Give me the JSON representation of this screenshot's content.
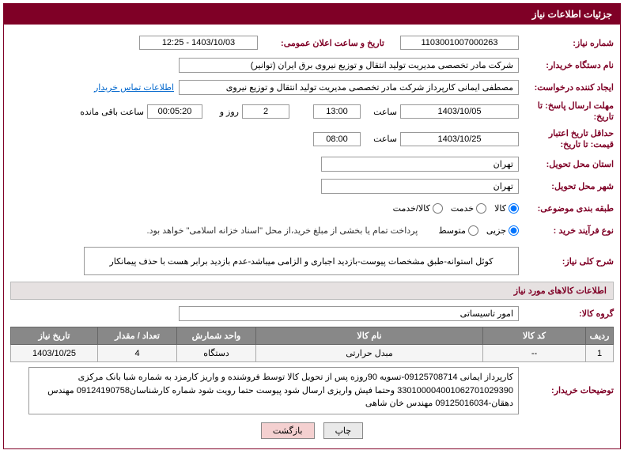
{
  "title_bar": "جزئیات اطلاعات نیاز",
  "labels": {
    "need_number": "شماره نیاز:",
    "announce_date": "تاریخ و ساعت اعلان عمومی:",
    "buyer_org": "نام دستگاه خریدار:",
    "requester": "ایجاد کننده درخواست:",
    "buyer_contact": "اطلاعات تماس خریدار",
    "response_deadline_date": "مهلت ارسال پاسخ: تا تاریخ:",
    "hour": "ساعت",
    "day_and": "روز و",
    "remaining": "ساعت باقی مانده",
    "price_validity_date": "حداقل تاریخ اعتبار قیمت: تا تاریخ:",
    "delivery_province": "استان محل تحویل:",
    "delivery_city": "شهر محل تحویل:",
    "category": "طبقه بندی موضوعی:",
    "goods": "کالا",
    "service": "خدمت",
    "goods_service": "کالا/خدمت",
    "purchase_type": "نوع فرآیند خرید :",
    "partial": "جزیی",
    "medium": "متوسط",
    "payment_note": "پرداخت تمام یا بخشی از مبلغ خرید،از محل \"اسناد خزانه اسلامی\" خواهد بود.",
    "need_desc": "شرح کلی نیاز:",
    "goods_info_section": "اطلاعات کالاهای مورد نیاز",
    "goods_group": "گروه کالا:",
    "buyer_notes": "توضیحات خریدار:"
  },
  "values": {
    "need_number": "1103001007000263",
    "announce_date": "1403/10/03 - 12:25",
    "buyer_org": "شرکت مادر تخصصی مدیریت تولید  انتقال و توزیع نیروی برق ایران (توانیر)",
    "requester": "مصطفی ایمانی کارپرداز شرکت مادر تخصصی مدیریت تولید  انتقال و توزیع نیروی",
    "response_date": "1403/10/05",
    "response_hour": "13:00",
    "days_left": "2",
    "time_left": "00:05:20",
    "validity_date": "1403/10/25",
    "validity_hour": "08:00",
    "province": "تهران",
    "city": "تهران",
    "need_desc_text": "کوئل استوانه-طبق مشخصات پیوست-بازدید اجباری و الزامی میباشد-عدم بازدید برابر هست با حذف پیمانکار",
    "goods_group": "امور تاسیساتی",
    "buyer_desc": "کارپرداز ایمانی 09125708714-تسویه 90روزه پس از تحویل کالا توسط فروشنده و واریز کارمزد به شماره شبا بانک مرکزی 330100004001062701029390 وحتما فیش واریزی ارسال شود پیوست حتما رویت شود شماره کارشناسان09124190758 مهندس دهقان-09125016034 مهندس خان شاهی"
  },
  "radios": {
    "category_selected": "goods",
    "purchase_selected": "partial"
  },
  "table": {
    "headers": {
      "idx": "ردیف",
      "code": "کد کالا",
      "name": "نام کالا",
      "unit": "واحد شمارش",
      "qty": "تعداد / مقدار",
      "date": "تاریخ نیاز"
    },
    "rows": [
      {
        "idx": "1",
        "code": "--",
        "name": "مبدل حرارتی",
        "unit": "دستگاه",
        "qty": "4",
        "date": "1403/10/25"
      }
    ]
  },
  "buttons": {
    "print": "چاپ",
    "back": "بازگشت"
  },
  "colors": {
    "primary": "#7f0026",
    "header_bg": "#888888",
    "section_bg": "#e6e1e1"
  }
}
